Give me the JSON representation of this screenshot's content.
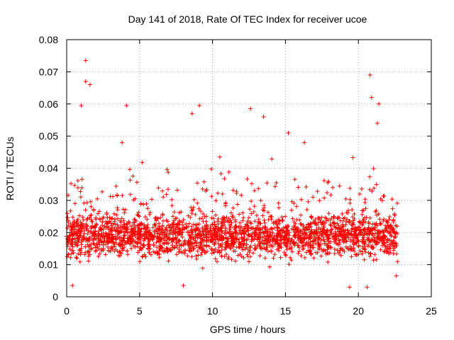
{
  "chart_data": {
    "type": "scatter",
    "title": "Day 141 of 2018, Rate Of TEC Index for receiver ucoe",
    "xlabel": "GPS time / hours",
    "ylabel": "ROTI / TECUs",
    "xlim": [
      0,
      25
    ],
    "ylim": [
      0,
      0.08
    ],
    "x_ticks": [
      "0",
      "5",
      "10",
      "15",
      "20",
      "25"
    ],
    "y_ticks": [
      "0",
      "0.01",
      "0.02",
      "0.03",
      "0.04",
      "0.05",
      "0.06",
      "0.07",
      "0.08"
    ],
    "grid": true,
    "marker": "plus",
    "marker_color": "#ff0000",
    "data_range": {
      "x": [
        0,
        22.7
      ],
      "y": [
        0.003,
        0.074
      ]
    },
    "notable_points": [
      {
        "x": 1.3,
        "y": 0.0735
      },
      {
        "x": 1.3,
        "y": 0.067
      },
      {
        "x": 1.6,
        "y": 0.066
      },
      {
        "x": 1.0,
        "y": 0.0595
      },
      {
        "x": 4.1,
        "y": 0.0595
      },
      {
        "x": 9.1,
        "y": 0.0595
      },
      {
        "x": 12.6,
        "y": 0.0585
      },
      {
        "x": 13.5,
        "y": 0.056
      },
      {
        "x": 8.6,
        "y": 0.057
      },
      {
        "x": 20.8,
        "y": 0.069
      },
      {
        "x": 20.9,
        "y": 0.062
      },
      {
        "x": 21.4,
        "y": 0.06
      },
      {
        "x": 21.3,
        "y": 0.054
      },
      {
        "x": 15.2,
        "y": 0.051
      },
      {
        "x": 16.3,
        "y": 0.048
      },
      {
        "x": 3.8,
        "y": 0.048
      },
      {
        "x": 10.5,
        "y": 0.0435
      },
      {
        "x": 0.4,
        "y": 0.0035
      },
      {
        "x": 8.0,
        "y": 0.0035
      },
      {
        "x": 19.4,
        "y": 0.003
      },
      {
        "x": 20.6,
        "y": 0.003
      },
      {
        "x": 22.6,
        "y": 0.0065
      }
    ]
  }
}
